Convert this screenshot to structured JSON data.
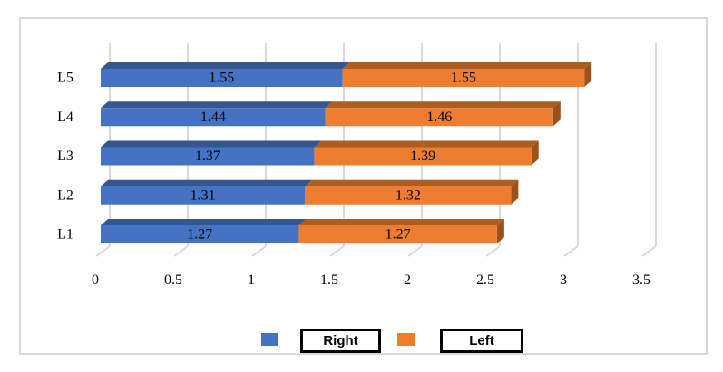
{
  "chart_data": {
    "type": "bar",
    "orientation": "horizontal",
    "stacked": true,
    "style": "3d",
    "title": "",
    "categories_top_to_bottom": [
      "L5",
      "L4",
      "L3",
      "L2",
      "L1"
    ],
    "series": [
      {
        "name": "Right",
        "color": "#4472C4",
        "color_top_shade": "#35568F",
        "values": [
          1.55,
          1.44,
          1.37,
          1.31,
          1.27
        ],
        "data_labels": [
          "1.55",
          "1.44",
          "1.37",
          "1.31",
          "1.27"
        ]
      },
      {
        "name": "Left",
        "color": "#ED7D31",
        "color_top_shade": "#AD5D20",
        "color_end_shade": "#9C511C",
        "values": [
          1.55,
          1.46,
          1.39,
          1.32,
          1.27
        ],
        "data_labels": [
          "1.55",
          "1.46",
          "1.39",
          "1.32",
          "1.27"
        ]
      }
    ],
    "x_ticks": [
      "0",
      "0.5",
      "1",
      "1.5",
      "2",
      "2.5",
      "3",
      "3.5"
    ],
    "xlim": [
      0,
      3.5
    ],
    "gridlines": true,
    "gridline_color": "#D9D9D9",
    "frame_border_color": "#D9D9D9",
    "data_label_color": "#000000",
    "legend_position": "bottom"
  }
}
